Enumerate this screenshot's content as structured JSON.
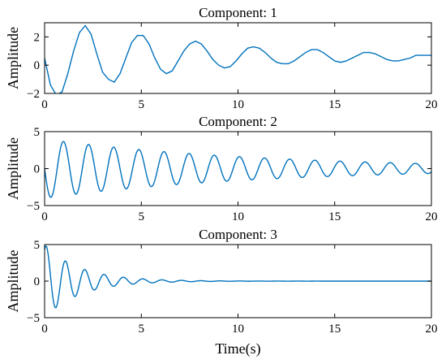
{
  "chart_data": [
    {
      "type": "line",
      "title": "Component: 1",
      "ylabel": "Amplitude",
      "xlabel": "",
      "xlim": [
        0,
        20
      ],
      "ylim": [
        -2,
        3
      ],
      "xticks": [
        0,
        5,
        10,
        15,
        20
      ],
      "yticks": [
        -2,
        0,
        2
      ],
      "xtick_labels": [
        "0",
        "5",
        "10",
        "15",
        "20"
      ],
      "ytick_labels": [
        "−2",
        "0",
        "2"
      ],
      "grid": false,
      "color": "#0072BD",
      "series": [
        {
          "x": [
            0,
            0.3,
            0.6,
            0.9,
            1.2,
            1.5,
            1.8,
            2.1,
            2.4,
            2.7,
            3.0,
            3.3,
            3.6,
            3.9,
            4.2,
            4.5,
            4.8,
            5.1,
            5.4,
            5.7,
            6.0,
            6.3,
            6.6,
            6.9,
            7.2,
            7.5,
            7.8,
            8.1,
            8.4,
            8.7,
            9.0,
            9.3,
            9.6,
            9.9,
            10.2,
            10.5,
            10.8,
            11.1,
            11.4,
            11.7,
            12.0,
            12.3,
            12.6,
            12.9,
            13.2,
            13.5,
            13.8,
            14.1,
            14.4,
            14.7,
            15.0,
            15.3,
            15.6,
            15.9,
            16.2,
            16.5,
            16.8,
            17.1,
            17.4,
            17.7,
            18.0,
            18.3,
            18.6,
            18.9,
            19.2,
            19.5,
            19.8,
            20.0
          ],
          "y": [
            0.5,
            -1.4,
            -2.1,
            -1.9,
            -0.6,
            1.0,
            2.3,
            2.8,
            2.2,
            0.8,
            -0.5,
            -1.0,
            -1.2,
            -0.6,
            0.5,
            1.6,
            2.1,
            2.1,
            1.5,
            0.5,
            -0.3,
            -0.6,
            -0.4,
            0.3,
            1.0,
            1.5,
            1.7,
            1.5,
            1.0,
            0.4,
            0.0,
            -0.2,
            -0.1,
            0.3,
            0.8,
            1.2,
            1.3,
            1.2,
            0.9,
            0.5,
            0.2,
            0.1,
            0.1,
            0.3,
            0.6,
            0.9,
            1.1,
            1.1,
            0.9,
            0.6,
            0.3,
            0.2,
            0.3,
            0.5,
            0.7,
            0.9,
            0.9,
            0.8,
            0.6,
            0.4,
            0.3,
            0.3,
            0.4,
            0.5,
            0.7,
            0.7,
            0.7,
            0.7
          ]
        }
      ]
    },
    {
      "type": "line",
      "title": "Component: 2",
      "ylabel": "Amplitude",
      "xlabel": "",
      "xlim": [
        0,
        20
      ],
      "ylim": [
        -5,
        5
      ],
      "xticks": [
        0,
        5,
        10,
        15,
        20
      ],
      "yticks": [
        -5,
        0,
        5
      ],
      "xtick_labels": [
        "0",
        "5",
        "10",
        "15",
        "20"
      ],
      "ytick_labels": [
        "−5",
        "0",
        "5"
      ],
      "grid": false,
      "color": "#0072BD",
      "model": {
        "form": "damped_sine",
        "offset": 0.0,
        "amplitude": 4.0,
        "decay": 0.09,
        "period": 1.3,
        "phase_deg": 180,
        "baseline_start": 0.0
      }
    },
    {
      "type": "line",
      "title": "Component: 3",
      "ylabel": "Amplitude",
      "xlabel": "Time(s)",
      "xlim": [
        0,
        20
      ],
      "ylim": [
        -5,
        5
      ],
      "xticks": [
        0,
        5,
        10,
        15,
        20
      ],
      "yticks": [
        -5,
        0,
        5
      ],
      "xtick_labels": [
        "0",
        "5",
        "10",
        "15",
        "20"
      ],
      "ytick_labels": [
        "−5",
        "0",
        "5"
      ],
      "grid": false,
      "color": "#0072BD",
      "model": {
        "form": "damped_sine",
        "offset": 0.0,
        "amplitude": 5.0,
        "decay": 0.55,
        "period": 1.0,
        "phase_deg": 60,
        "baseline_start": 0.0
      }
    }
  ]
}
